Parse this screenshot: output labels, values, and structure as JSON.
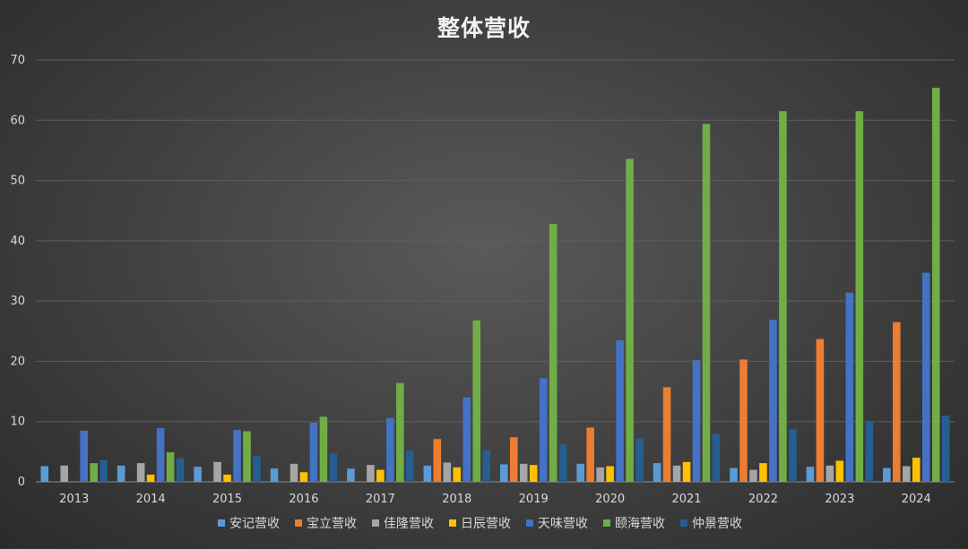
{
  "chart_data": {
    "type": "bar",
    "title": "整体营收",
    "categories": [
      "2013",
      "2014",
      "2015",
      "2016",
      "2017",
      "2018",
      "2019",
      "2020",
      "2021",
      "2022",
      "2023",
      "2024"
    ],
    "ylim": [
      0,
      70
    ],
    "yticks": [
      0,
      10,
      20,
      30,
      40,
      50,
      60,
      70
    ],
    "grid": true,
    "legend_position": "bottom",
    "series": [
      {
        "name": "安记营收",
        "color": "#5b9bd5",
        "values": [
          2.6,
          2.7,
          2.5,
          2.2,
          2.2,
          2.7,
          2.9,
          3.0,
          3.1,
          2.3,
          2.5,
          2.3
        ]
      },
      {
        "name": "宝立营收",
        "color": "#ed7d31",
        "values": [
          0,
          0,
          0,
          0,
          0,
          7.1,
          7.4,
          9.0,
          15.7,
          20.3,
          23.7,
          26.5
        ]
      },
      {
        "name": "佳隆营收",
        "color": "#a5a5a5",
        "values": [
          2.7,
          3.1,
          3.3,
          3.0,
          2.8,
          3.2,
          3.0,
          2.4,
          2.7,
          2.0,
          2.7,
          2.6
        ]
      },
      {
        "name": "日辰营收",
        "color": "#ffc000",
        "values": [
          0,
          1.2,
          1.2,
          1.6,
          2.0,
          2.4,
          2.8,
          2.6,
          3.3,
          3.1,
          3.5,
          4.0
        ]
      },
      {
        "name": "天味营收",
        "color": "#4472c4",
        "values": [
          8.5,
          8.9,
          8.6,
          9.8,
          10.6,
          14.0,
          17.2,
          23.5,
          20.2,
          26.9,
          31.4,
          34.7
        ]
      },
      {
        "name": "颐海营收",
        "color": "#70ad47",
        "values": [
          3.1,
          4.9,
          8.4,
          10.8,
          16.4,
          26.8,
          42.8,
          53.6,
          59.4,
          61.5,
          61.5,
          65.4
        ]
      },
      {
        "name": "仲景营收",
        "color": "#255e91",
        "values": [
          3.6,
          3.9,
          4.3,
          4.7,
          5.2,
          5.3,
          6.2,
          7.2,
          8.0,
          8.8,
          9.9,
          11.0
        ]
      }
    ]
  }
}
